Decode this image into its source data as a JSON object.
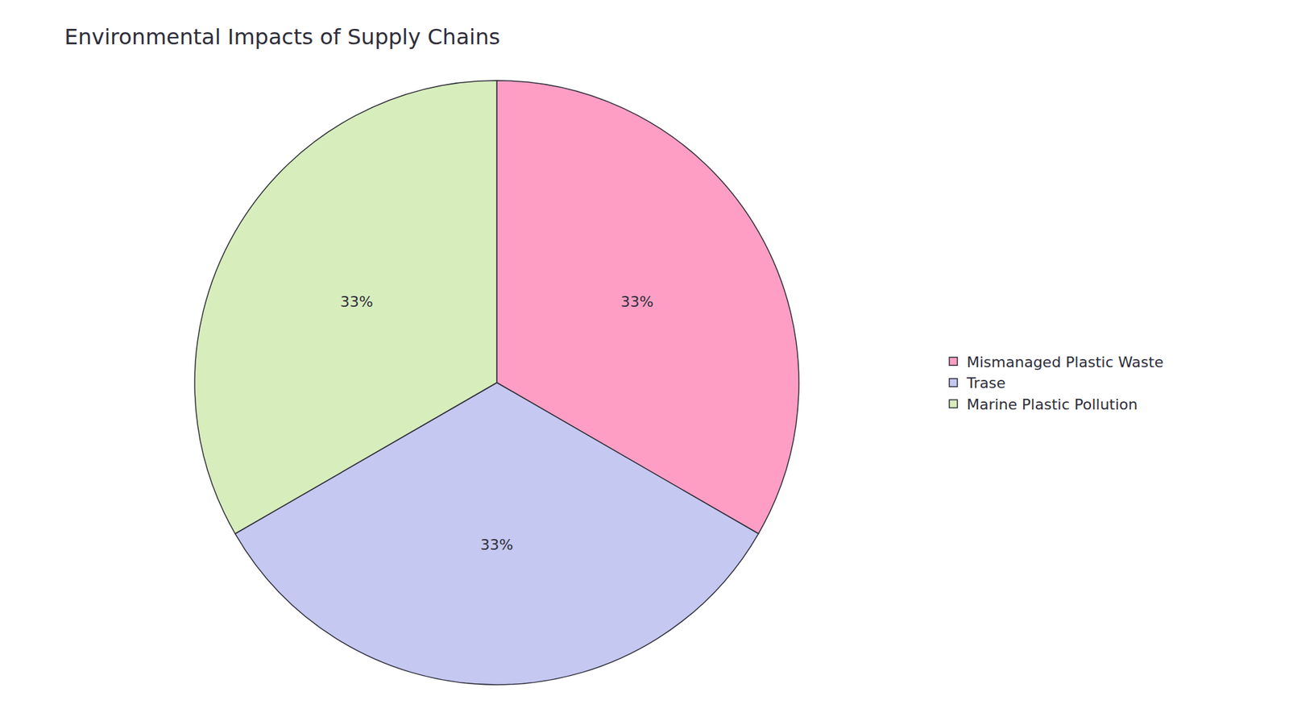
{
  "chart_data": {
    "type": "pie",
    "title": "Environmental Impacts of Supply Chains",
    "categories": [
      "Mismanaged Plastic Waste",
      "Trase",
      "Marine Plastic Pollution"
    ],
    "values": [
      33,
      33,
      33
    ],
    "value_labels": [
      "33%",
      "33%",
      "33%"
    ],
    "colors": [
      "#FF9EC4",
      "#C5C8F0",
      "#D8EDBC"
    ],
    "data_labels": true,
    "legend": "right"
  }
}
